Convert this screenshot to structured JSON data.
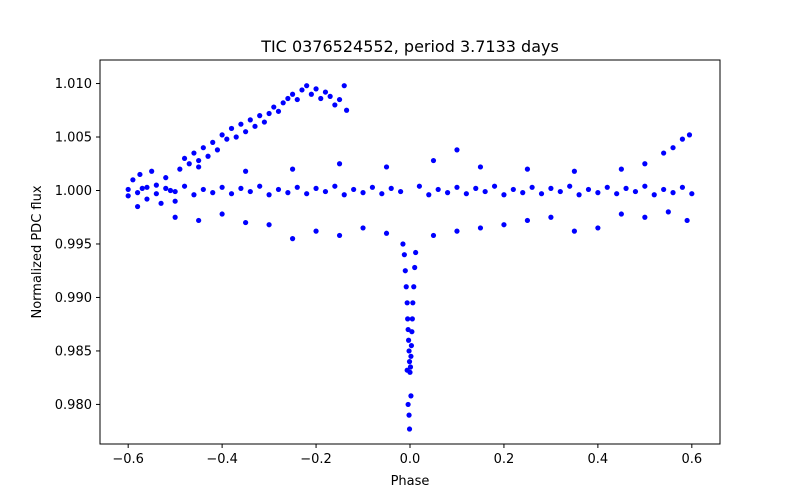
{
  "chart_data": {
    "type": "scatter",
    "title": "TIC 0376524552, period 3.7133 days",
    "xlabel": "Phase",
    "ylabel": "Normalized PDC flux",
    "xlim": [
      -0.66,
      0.66
    ],
    "ylim": [
      0.9763,
      1.0122
    ],
    "x_ticks": [
      -0.6,
      -0.4,
      -0.2,
      0.0,
      0.2,
      0.4,
      0.6
    ],
    "x_tick_labels": [
      "−0.6",
      "−0.4",
      "−0.2",
      "0.0",
      "0.2",
      "0.4",
      "0.6"
    ],
    "y_ticks": [
      0.98,
      0.985,
      0.99,
      0.995,
      1.0,
      1.005,
      1.01
    ],
    "y_tick_labels": [
      "0.980",
      "0.985",
      "0.990",
      "0.995",
      "1.000",
      "1.005",
      "1.010"
    ],
    "grid": false,
    "series": [
      {
        "name": "PDC flux",
        "color": "#0000ff",
        "points": [
          [
            -0.6,
            0.9995
          ],
          [
            -0.59,
            1.001
          ],
          [
            -0.58,
            0.9985
          ],
          [
            -0.575,
            1.0015
          ],
          [
            -0.57,
            1.0002
          ],
          [
            -0.56,
            0.9992
          ],
          [
            -0.55,
            1.0018
          ],
          [
            -0.54,
            1.0005
          ],
          [
            -0.53,
            0.9988
          ],
          [
            -0.52,
            1.0012
          ],
          [
            -0.51,
            1.0
          ],
          [
            -0.5,
            0.999
          ],
          [
            -0.49,
            1.002
          ],
          [
            -0.48,
            1.003
          ],
          [
            -0.47,
            1.0025
          ],
          [
            -0.46,
            1.0035
          ],
          [
            -0.45,
            1.0028
          ],
          [
            -0.44,
            1.004
          ],
          [
            -0.43,
            1.0032
          ],
          [
            -0.42,
            1.0045
          ],
          [
            -0.41,
            1.0038
          ],
          [
            -0.4,
            1.0052
          ],
          [
            -0.39,
            1.0048
          ],
          [
            -0.38,
            1.0058
          ],
          [
            -0.37,
            1.005
          ],
          [
            -0.36,
            1.0062
          ],
          [
            -0.35,
            1.0055
          ],
          [
            -0.34,
            1.0066
          ],
          [
            -0.33,
            1.006
          ],
          [
            -0.32,
            1.007
          ],
          [
            -0.31,
            1.0064
          ],
          [
            -0.3,
            1.0072
          ],
          [
            -0.29,
            1.0078
          ],
          [
            -0.28,
            1.0074
          ],
          [
            -0.27,
            1.0082
          ],
          [
            -0.26,
            1.0086
          ],
          [
            -0.25,
            1.009
          ],
          [
            -0.24,
            1.0085
          ],
          [
            -0.23,
            1.0094
          ],
          [
            -0.22,
            1.0098
          ],
          [
            -0.21,
            1.009
          ],
          [
            -0.2,
            1.0095
          ],
          [
            -0.19,
            1.0086
          ],
          [
            -0.18,
            1.0092
          ],
          [
            -0.17,
            1.0088
          ],
          [
            -0.16,
            1.008
          ],
          [
            -0.15,
            1.0085
          ],
          [
            -0.14,
            1.0098
          ],
          [
            -0.135,
            1.0075
          ],
          [
            -0.6,
            1.0001
          ],
          [
            -0.58,
            0.9998
          ],
          [
            -0.56,
            1.0003
          ],
          [
            -0.54,
            0.9997
          ],
          [
            -0.52,
            1.0002
          ],
          [
            -0.5,
            0.9999
          ],
          [
            -0.48,
            1.0004
          ],
          [
            -0.46,
            0.9996
          ],
          [
            -0.44,
            1.0001
          ],
          [
            -0.42,
            0.9998
          ],
          [
            -0.4,
            1.0003
          ],
          [
            -0.38,
            0.9997
          ],
          [
            -0.36,
            1.0002
          ],
          [
            -0.34,
            0.9999
          ],
          [
            -0.32,
            1.0004
          ],
          [
            -0.3,
            0.9996
          ],
          [
            -0.28,
            1.0001
          ],
          [
            -0.26,
            0.9998
          ],
          [
            -0.24,
            1.0003
          ],
          [
            -0.22,
            0.9997
          ],
          [
            -0.2,
            1.0002
          ],
          [
            -0.18,
            0.9999
          ],
          [
            -0.16,
            1.0004
          ],
          [
            -0.14,
            0.9996
          ],
          [
            -0.12,
            1.0001
          ],
          [
            -0.1,
            0.9998
          ],
          [
            -0.08,
            1.0003
          ],
          [
            -0.06,
            0.9997
          ],
          [
            -0.04,
            1.0002
          ],
          [
            -0.02,
            0.9999
          ],
          [
            0.02,
            1.0004
          ],
          [
            0.04,
            0.9996
          ],
          [
            0.06,
            1.0001
          ],
          [
            0.08,
            0.9998
          ],
          [
            0.1,
            1.0003
          ],
          [
            0.12,
            0.9997
          ],
          [
            0.14,
            1.0002
          ],
          [
            0.16,
            0.9999
          ],
          [
            0.18,
            1.0004
          ],
          [
            0.2,
            0.9996
          ],
          [
            0.22,
            1.0001
          ],
          [
            0.24,
            0.9998
          ],
          [
            0.26,
            1.0003
          ],
          [
            0.28,
            0.9997
          ],
          [
            0.3,
            1.0002
          ],
          [
            0.32,
            0.9999
          ],
          [
            0.34,
            1.0004
          ],
          [
            0.36,
            0.9996
          ],
          [
            0.38,
            1.0001
          ],
          [
            0.4,
            0.9998
          ],
          [
            0.42,
            1.0003
          ],
          [
            0.44,
            0.9997
          ],
          [
            0.46,
            1.0002
          ],
          [
            0.48,
            0.9999
          ],
          [
            0.5,
            1.0004
          ],
          [
            0.52,
            0.9996
          ],
          [
            0.54,
            1.0001
          ],
          [
            0.56,
            0.9998
          ],
          [
            0.58,
            1.0003
          ],
          [
            0.6,
            0.9997
          ],
          [
            -0.5,
            0.9975
          ],
          [
            -0.45,
            0.9972
          ],
          [
            -0.4,
            0.9978
          ],
          [
            -0.35,
            0.997
          ],
          [
            -0.3,
            0.9968
          ],
          [
            -0.25,
            0.9955
          ],
          [
            -0.2,
            0.9962
          ],
          [
            -0.15,
            0.9958
          ],
          [
            -0.1,
            0.9965
          ],
          [
            -0.05,
            0.996
          ],
          [
            0.05,
            0.9958
          ],
          [
            0.1,
            0.9962
          ],
          [
            0.15,
            0.9965
          ],
          [
            0.2,
            0.9968
          ],
          [
            0.25,
            0.9972
          ],
          [
            0.3,
            0.9975
          ],
          [
            0.35,
            0.9962
          ],
          [
            0.4,
            0.9965
          ],
          [
            0.45,
            0.9978
          ],
          [
            0.5,
            0.9975
          ],
          [
            0.55,
            0.998
          ],
          [
            0.59,
            0.9972
          ],
          [
            -0.45,
            1.0022
          ],
          [
            -0.35,
            1.0018
          ],
          [
            -0.25,
            1.002
          ],
          [
            -0.15,
            1.0025
          ],
          [
            -0.05,
            1.0022
          ],
          [
            0.05,
            1.0028
          ],
          [
            0.1,
            1.0038
          ],
          [
            0.15,
            1.0022
          ],
          [
            0.25,
            1.002
          ],
          [
            0.35,
            1.0018
          ],
          [
            0.45,
            1.002
          ],
          [
            0.5,
            1.0025
          ],
          [
            0.54,
            1.0035
          ],
          [
            0.56,
            1.004
          ],
          [
            0.58,
            1.0048
          ],
          [
            0.595,
            1.0052
          ],
          [
            -0.015,
            0.995
          ],
          [
            -0.012,
            0.994
          ],
          [
            -0.01,
            0.9925
          ],
          [
            -0.008,
            0.991
          ],
          [
            -0.006,
            0.9895
          ],
          [
            -0.005,
            0.988
          ],
          [
            -0.004,
            0.987
          ],
          [
            -0.003,
            0.986
          ],
          [
            -0.002,
            0.985
          ],
          [
            -0.001,
            0.984
          ],
          [
            0.0,
            0.983
          ],
          [
            0.001,
            0.9835
          ],
          [
            0.002,
            0.9845
          ],
          [
            0.003,
            0.9855
          ],
          [
            0.004,
            0.9868
          ],
          [
            0.005,
            0.988
          ],
          [
            0.006,
            0.9895
          ],
          [
            0.008,
            0.991
          ],
          [
            0.01,
            0.9928
          ],
          [
            0.012,
            0.9942
          ],
          [
            -0.004,
            0.98
          ],
          [
            -0.002,
            0.979
          ],
          [
            -0.001,
            0.9777
          ],
          [
            0.002,
            0.9808
          ],
          [
            -0.006,
            0.9832
          ]
        ]
      }
    ]
  }
}
